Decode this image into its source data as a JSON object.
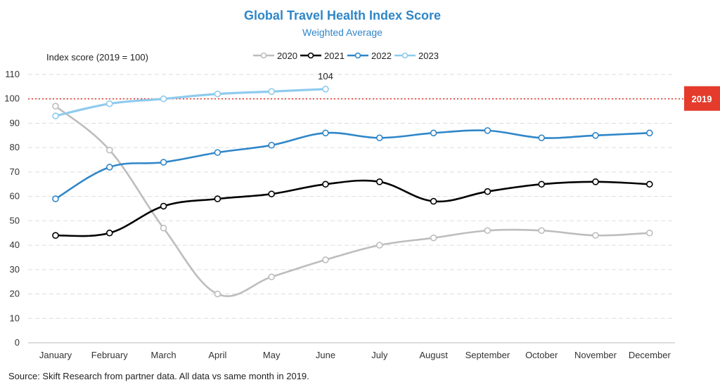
{
  "chart_data": {
    "type": "line",
    "title": "Global Travel Health Index Score",
    "subtitle": "Weighted Average",
    "ylabel": "Index score (2019 = 100)",
    "ylim": [
      0,
      110
    ],
    "yticks": [
      0,
      10,
      20,
      30,
      40,
      50,
      60,
      70,
      80,
      90,
      100,
      110
    ],
    "categories": [
      "January",
      "February",
      "March",
      "April",
      "May",
      "June",
      "July",
      "August",
      "September",
      "October",
      "November",
      "December"
    ],
    "grid": true,
    "legend_position": "top",
    "reference_line": {
      "value": 100,
      "label": "2019",
      "color": "#e53b2c"
    },
    "series": [
      {
        "name": "2020",
        "color": "#bdbdbd",
        "values": [
          97,
          79,
          47,
          20,
          27,
          34,
          40,
          43,
          46,
          46,
          44,
          45
        ]
      },
      {
        "name": "2021",
        "color": "#000000",
        "values": [
          44,
          45,
          56,
          59,
          61,
          65,
          66,
          58,
          62,
          65,
          66,
          65
        ]
      },
      {
        "name": "2022",
        "color": "#2f86c8",
        "values": [
          59,
          72,
          74,
          78,
          81,
          86,
          84,
          86,
          87,
          84,
          85,
          86
        ]
      },
      {
        "name": "2023",
        "color": "#8ecbee",
        "values": [
          93,
          98,
          100,
          102,
          103,
          104,
          null,
          null,
          null,
          null,
          null,
          null
        ]
      }
    ],
    "annotations": [
      {
        "series": "2023",
        "category": "June",
        "text": "104"
      }
    ],
    "title_color": "#2f86c8",
    "source": "Source: Skift Research from partner data. All data vs same month in 2019."
  }
}
